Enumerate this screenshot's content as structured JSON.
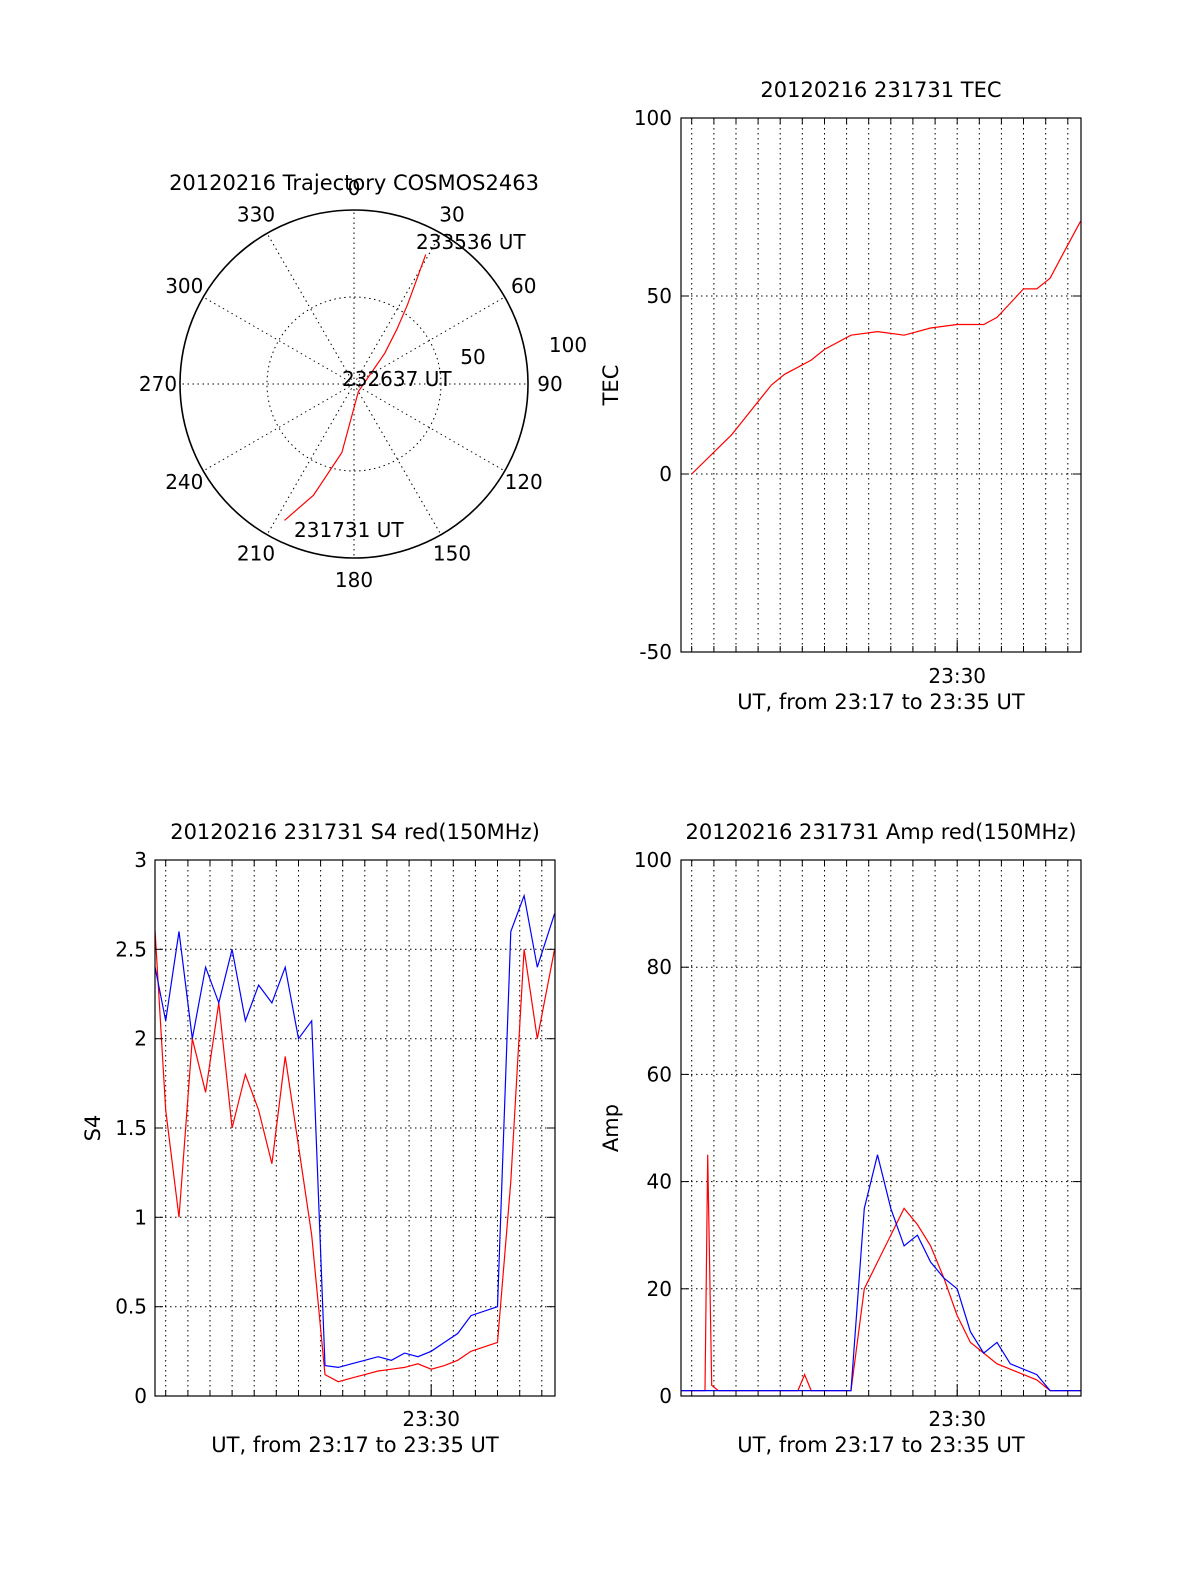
{
  "chart_data": [
    {
      "type": "polar",
      "title": "20120216 Trajectory COSMOS2463",
      "azimuth_labels": [
        "0",
        "30",
        "60",
        "90",
        "120",
        "150",
        "180",
        "210",
        "240",
        "270",
        "300",
        "330"
      ],
      "radial_labels": [
        "50",
        "100"
      ],
      "radial_values": [
        50,
        100
      ],
      "series": [
        {
          "color": "#ff0000",
          "points": [
            [
              207,
              88
            ],
            [
              200,
              68
            ],
            [
              190,
              40
            ],
            [
              150,
              5
            ],
            [
              45,
              25
            ],
            [
              38,
              40
            ],
            [
              34,
              55
            ],
            [
              31,
              70
            ],
            [
              29,
              85
            ]
          ]
        }
      ],
      "annotations": [
        {
          "text": "233536 UT",
          "az": 33,
          "r": 84
        },
        {
          "text": "232637 UT",
          "az": 90,
          "r": 5
        },
        {
          "text": "231731 UT",
          "az": 188,
          "r": 90
        }
      ]
    },
    {
      "type": "line",
      "title": "20120216 231731 TEC",
      "xlabel": "UT, from 23:17 to 23:35 UT",
      "ylabel": "TEC",
      "xlim": [
        23.2919,
        23.5933
      ],
      "ylim": [
        -50,
        100
      ],
      "yticks": [
        "100",
        "50",
        "0",
        "-50"
      ],
      "xtick_labels": [
        "23:30"
      ],
      "xtick_values": [
        23.5
      ],
      "grid": "on",
      "series": [
        {
          "color": "#ff0000",
          "x": [
            23.3,
            23.33,
            23.345,
            23.36,
            23.37,
            23.39,
            23.4,
            23.42,
            23.44,
            23.46,
            23.48,
            23.5,
            23.52,
            23.53,
            23.54,
            23.55,
            23.56,
            23.57,
            23.58,
            23.593
          ],
          "y": [
            0,
            11,
            18,
            25,
            28,
            32,
            35,
            39,
            40,
            39,
            41,
            42,
            42,
            44,
            48,
            52,
            52,
            55,
            62,
            71
          ]
        }
      ]
    },
    {
      "type": "line",
      "title": "20120216 231731 S4 red(150MHz)",
      "xlabel": "UT, from 23:17 to 23:35 UT",
      "ylabel": "S4",
      "xlim": [
        23.2919,
        23.5933
      ],
      "ylim": [
        0,
        3
      ],
      "yticks": [
        "3",
        "2.5",
        "2",
        "1.5",
        "1",
        "0.5",
        "0"
      ],
      "xtick_labels": [
        "23:30"
      ],
      "xtick_values": [
        23.5
      ],
      "grid": "on",
      "series": [
        {
          "color": "#ff0000",
          "x": [
            23.292,
            23.3,
            23.31,
            23.32,
            23.33,
            23.34,
            23.35,
            23.36,
            23.37,
            23.38,
            23.39,
            23.4,
            23.41,
            23.42,
            23.43,
            23.44,
            23.45,
            23.46,
            23.47,
            23.48,
            23.49,
            23.5,
            23.51,
            23.52,
            23.53,
            23.55,
            23.56,
            23.57,
            23.58,
            23.593
          ],
          "y": [
            2.6,
            1.6,
            1.0,
            2.0,
            1.7,
            2.2,
            1.5,
            1.8,
            1.6,
            1.3,
            1.9,
            1.4,
            0.9,
            0.12,
            0.08,
            0.1,
            0.12,
            0.14,
            0.15,
            0.16,
            0.18,
            0.15,
            0.17,
            0.2,
            0.25,
            0.3,
            1.2,
            2.5,
            2.0,
            2.5
          ]
        },
        {
          "color": "#0000ff",
          "x": [
            23.292,
            23.3,
            23.31,
            23.32,
            23.33,
            23.34,
            23.35,
            23.36,
            23.37,
            23.38,
            23.39,
            23.4,
            23.41,
            23.42,
            23.43,
            23.44,
            23.45,
            23.46,
            23.47,
            23.48,
            23.49,
            23.5,
            23.51,
            23.52,
            23.53,
            23.55,
            23.56,
            23.57,
            23.58,
            23.593
          ],
          "y": [
            2.4,
            2.1,
            2.6,
            2.0,
            2.4,
            2.2,
            2.5,
            2.1,
            2.3,
            2.2,
            2.4,
            2.0,
            2.1,
            0.17,
            0.16,
            0.18,
            0.2,
            0.22,
            0.2,
            0.24,
            0.22,
            0.25,
            0.3,
            0.35,
            0.45,
            0.5,
            2.6,
            2.8,
            2.4,
            2.7
          ]
        }
      ]
    },
    {
      "type": "line",
      "title": "20120216 231731 Amp red(150MHz)",
      "xlabel": "UT, from 23:17 to 23:35 UT",
      "ylabel": "Amp",
      "xlim": [
        23.2919,
        23.5933
      ],
      "ylim": [
        0,
        100
      ],
      "yticks": [
        "100",
        "80",
        "60",
        "40",
        "20",
        "0"
      ],
      "xtick_labels": [
        "23:30"
      ],
      "xtick_values": [
        23.5
      ],
      "grid": "on",
      "series": [
        {
          "color": "#ff0000",
          "x": [
            23.292,
            23.3,
            23.31,
            23.312,
            23.315,
            23.32,
            23.35,
            23.38,
            23.385,
            23.39,
            23.42,
            23.43,
            23.44,
            23.45,
            23.46,
            23.47,
            23.48,
            23.49,
            23.5,
            23.51,
            23.52,
            23.53,
            23.54,
            23.55,
            23.56,
            23.57,
            23.58,
            23.593
          ],
          "y": [
            1,
            1,
            1,
            45,
            2,
            1,
            1,
            1,
            4,
            1,
            1,
            20,
            25,
            30,
            35,
            32,
            28,
            22,
            15,
            10,
            8,
            6,
            5,
            4,
            3,
            1,
            1,
            1
          ]
        },
        {
          "color": "#0000ff",
          "x": [
            23.292,
            23.3,
            23.35,
            23.4,
            23.42,
            23.43,
            23.435,
            23.44,
            23.45,
            23.46,
            23.47,
            23.48,
            23.49,
            23.5,
            23.51,
            23.52,
            23.53,
            23.54,
            23.55,
            23.56,
            23.57,
            23.58,
            23.593
          ],
          "y": [
            1,
            1,
            1,
            1,
            1,
            35,
            40,
            45,
            35,
            28,
            30,
            25,
            22,
            20,
            12,
            8,
            10,
            6,
            5,
            4,
            1,
            1,
            1
          ]
        }
      ]
    }
  ]
}
